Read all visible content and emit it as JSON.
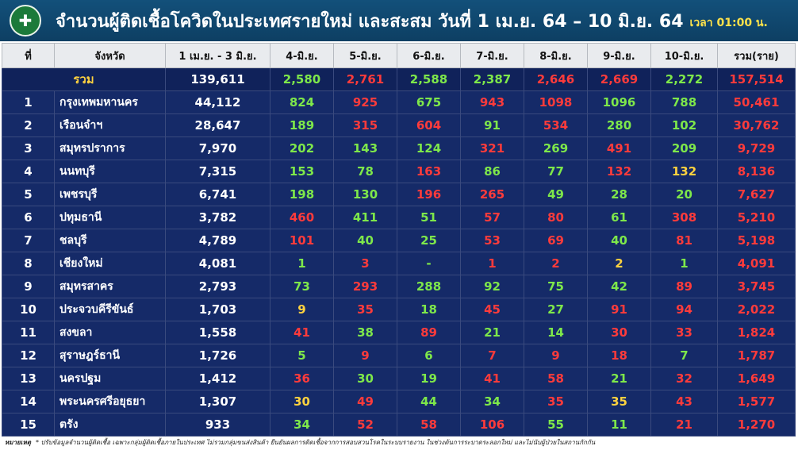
{
  "header": {
    "title": "จำนวนผู้ติดเชื้อโควิดในประเทศรายใหม่ และสะสม วันที่ 1 เม.ย. 64 – 10 มิ.ย. 64",
    "time": "เวลา 01:00 น."
  },
  "columns": [
    "ที่",
    "จังหวัด",
    "1 เม.ย. - 3 มิ.ย.",
    "4-มิ.ย.",
    "5-มิ.ย.",
    "6-มิ.ย.",
    "7-มิ.ย.",
    "8-มิ.ย.",
    "9-มิ.ย.",
    "10-มิ.ย.",
    "รวม(ราย)"
  ],
  "colors": {
    "green": "#7ee84a",
    "red": "#ff3b3b",
    "yellow": "#ffd23f",
    "white": "#ffffff"
  },
  "total_row": {
    "label": "รวม",
    "base": "139,611",
    "days": [
      {
        "v": "2,580",
        "c": "green"
      },
      {
        "v": "2,761",
        "c": "red"
      },
      {
        "v": "2,588",
        "c": "green"
      },
      {
        "v": "2,387",
        "c": "green"
      },
      {
        "v": "2,646",
        "c": "red"
      },
      {
        "v": "2,669",
        "c": "red"
      },
      {
        "v": "2,272",
        "c": "green"
      }
    ],
    "sum": "157,514"
  },
  "rows": [
    {
      "no": "1",
      "province": "กรุงเทพมหานคร",
      "base": "44,112",
      "days": [
        {
          "v": "824",
          "c": "green"
        },
        {
          "v": "925",
          "c": "red"
        },
        {
          "v": "675",
          "c": "green"
        },
        {
          "v": "943",
          "c": "red"
        },
        {
          "v": "1098",
          "c": "red"
        },
        {
          "v": "1096",
          "c": "green"
        },
        {
          "v": "788",
          "c": "green"
        }
      ],
      "sum": "50,461"
    },
    {
      "no": "2",
      "province": "เรือนจำฯ",
      "base": "28,647",
      "days": [
        {
          "v": "189",
          "c": "green"
        },
        {
          "v": "315",
          "c": "red"
        },
        {
          "v": "604",
          "c": "red"
        },
        {
          "v": "91",
          "c": "green"
        },
        {
          "v": "534",
          "c": "red"
        },
        {
          "v": "280",
          "c": "green"
        },
        {
          "v": "102",
          "c": "green"
        }
      ],
      "sum": "30,762"
    },
    {
      "no": "3",
      "province": "สมุทรปราการ",
      "base": "7,970",
      "days": [
        {
          "v": "202",
          "c": "green"
        },
        {
          "v": "143",
          "c": "green"
        },
        {
          "v": "124",
          "c": "green"
        },
        {
          "v": "321",
          "c": "red"
        },
        {
          "v": "269",
          "c": "green"
        },
        {
          "v": "491",
          "c": "red"
        },
        {
          "v": "209",
          "c": "green"
        }
      ],
      "sum": "9,729"
    },
    {
      "no": "4",
      "province": "นนทบุรี",
      "base": "7,315",
      "days": [
        {
          "v": "153",
          "c": "green"
        },
        {
          "v": "78",
          "c": "green"
        },
        {
          "v": "163",
          "c": "red"
        },
        {
          "v": "86",
          "c": "green"
        },
        {
          "v": "77",
          "c": "green"
        },
        {
          "v": "132",
          "c": "red"
        },
        {
          "v": "132",
          "c": "yellow"
        }
      ],
      "sum": "8,136"
    },
    {
      "no": "5",
      "province": "เพชรบุรี",
      "base": "6,741",
      "days": [
        {
          "v": "198",
          "c": "green"
        },
        {
          "v": "130",
          "c": "green"
        },
        {
          "v": "196",
          "c": "red"
        },
        {
          "v": "265",
          "c": "red"
        },
        {
          "v": "49",
          "c": "green"
        },
        {
          "v": "28",
          "c": "green"
        },
        {
          "v": "20",
          "c": "green"
        }
      ],
      "sum": "7,627"
    },
    {
      "no": "6",
      "province": "ปทุมธานี",
      "base": "3,782",
      "days": [
        {
          "v": "460",
          "c": "red"
        },
        {
          "v": "411",
          "c": "green"
        },
        {
          "v": "51",
          "c": "green"
        },
        {
          "v": "57",
          "c": "red"
        },
        {
          "v": "80",
          "c": "red"
        },
        {
          "v": "61",
          "c": "green"
        },
        {
          "v": "308",
          "c": "red"
        }
      ],
      "sum": "5,210"
    },
    {
      "no": "7",
      "province": "ชลบุรี",
      "base": "4,789",
      "days": [
        {
          "v": "101",
          "c": "red"
        },
        {
          "v": "40",
          "c": "green"
        },
        {
          "v": "25",
          "c": "green"
        },
        {
          "v": "53",
          "c": "red"
        },
        {
          "v": "69",
          "c": "red"
        },
        {
          "v": "40",
          "c": "green"
        },
        {
          "v": "81",
          "c": "red"
        }
      ],
      "sum": "5,198"
    },
    {
      "no": "8",
      "province": "เชียงใหม่",
      "base": "4,081",
      "days": [
        {
          "v": "1",
          "c": "green"
        },
        {
          "v": "3",
          "c": "red"
        },
        {
          "v": "-",
          "c": "green"
        },
        {
          "v": "1",
          "c": "red"
        },
        {
          "v": "2",
          "c": "red"
        },
        {
          "v": "2",
          "c": "yellow"
        },
        {
          "v": "1",
          "c": "green"
        }
      ],
      "sum": "4,091"
    },
    {
      "no": "9",
      "province": "สมุทรสาคร",
      "base": "2,793",
      "days": [
        {
          "v": "73",
          "c": "green"
        },
        {
          "v": "293",
          "c": "red"
        },
        {
          "v": "288",
          "c": "green"
        },
        {
          "v": "92",
          "c": "green"
        },
        {
          "v": "75",
          "c": "green"
        },
        {
          "v": "42",
          "c": "green"
        },
        {
          "v": "89",
          "c": "red"
        }
      ],
      "sum": "3,745"
    },
    {
      "no": "10",
      "province": "ประจวบคีรีขันธ์",
      "base": "1,703",
      "days": [
        {
          "v": "9",
          "c": "yellow"
        },
        {
          "v": "35",
          "c": "red"
        },
        {
          "v": "18",
          "c": "green"
        },
        {
          "v": "45",
          "c": "red"
        },
        {
          "v": "27",
          "c": "green"
        },
        {
          "v": "91",
          "c": "red"
        },
        {
          "v": "94",
          "c": "red"
        }
      ],
      "sum": "2,022"
    },
    {
      "no": "11",
      "province": "สงขลา",
      "base": "1,558",
      "days": [
        {
          "v": "41",
          "c": "red"
        },
        {
          "v": "38",
          "c": "green"
        },
        {
          "v": "89",
          "c": "red"
        },
        {
          "v": "21",
          "c": "green"
        },
        {
          "v": "14",
          "c": "green"
        },
        {
          "v": "30",
          "c": "red"
        },
        {
          "v": "33",
          "c": "red"
        }
      ],
      "sum": "1,824"
    },
    {
      "no": "12",
      "province": "สุราษฎร์ธานี",
      "base": "1,726",
      "days": [
        {
          "v": "5",
          "c": "green"
        },
        {
          "v": "9",
          "c": "red"
        },
        {
          "v": "6",
          "c": "green"
        },
        {
          "v": "7",
          "c": "red"
        },
        {
          "v": "9",
          "c": "red"
        },
        {
          "v": "18",
          "c": "red"
        },
        {
          "v": "7",
          "c": "green"
        }
      ],
      "sum": "1,787"
    },
    {
      "no": "13",
      "province": "นครปฐม",
      "base": "1,412",
      "days": [
        {
          "v": "36",
          "c": "red"
        },
        {
          "v": "30",
          "c": "green"
        },
        {
          "v": "19",
          "c": "green"
        },
        {
          "v": "41",
          "c": "red"
        },
        {
          "v": "58",
          "c": "red"
        },
        {
          "v": "21",
          "c": "green"
        },
        {
          "v": "32",
          "c": "red"
        }
      ],
      "sum": "1,649"
    },
    {
      "no": "14",
      "province": "พระนครศรีอยุธยา",
      "base": "1,307",
      "days": [
        {
          "v": "30",
          "c": "yellow"
        },
        {
          "v": "49",
          "c": "red"
        },
        {
          "v": "44",
          "c": "green"
        },
        {
          "v": "34",
          "c": "green"
        },
        {
          "v": "35",
          "c": "red"
        },
        {
          "v": "35",
          "c": "yellow"
        },
        {
          "v": "43",
          "c": "red"
        }
      ],
      "sum": "1,577"
    },
    {
      "no": "15",
      "province": "ตรัง",
      "base": "933",
      "days": [
        {
          "v": "34",
          "c": "green"
        },
        {
          "v": "52",
          "c": "red"
        },
        {
          "v": "58",
          "c": "red"
        },
        {
          "v": "106",
          "c": "red"
        },
        {
          "v": "55",
          "c": "green"
        },
        {
          "v": "11",
          "c": "green"
        },
        {
          "v": "21",
          "c": "red"
        }
      ],
      "sum": "1,270"
    }
  ],
  "footnote": {
    "label": "หมายเหตุ",
    "text": "* ปรับข้อมูลจำนวนผู้ติดเชื้อ เฉพาะกลุ่มผู้ติดเชื้อภายในประเทศ ไม่รวมกลุ่มขนส่งสินค้า ยืนยันผลการติดเชื้อจากการสอบสวนโรคในระบบรายงาน ในช่วงต้นการระบาดระลอกใหม่ และไม่นับผู้ป่วยในสถานกักกัน"
  }
}
